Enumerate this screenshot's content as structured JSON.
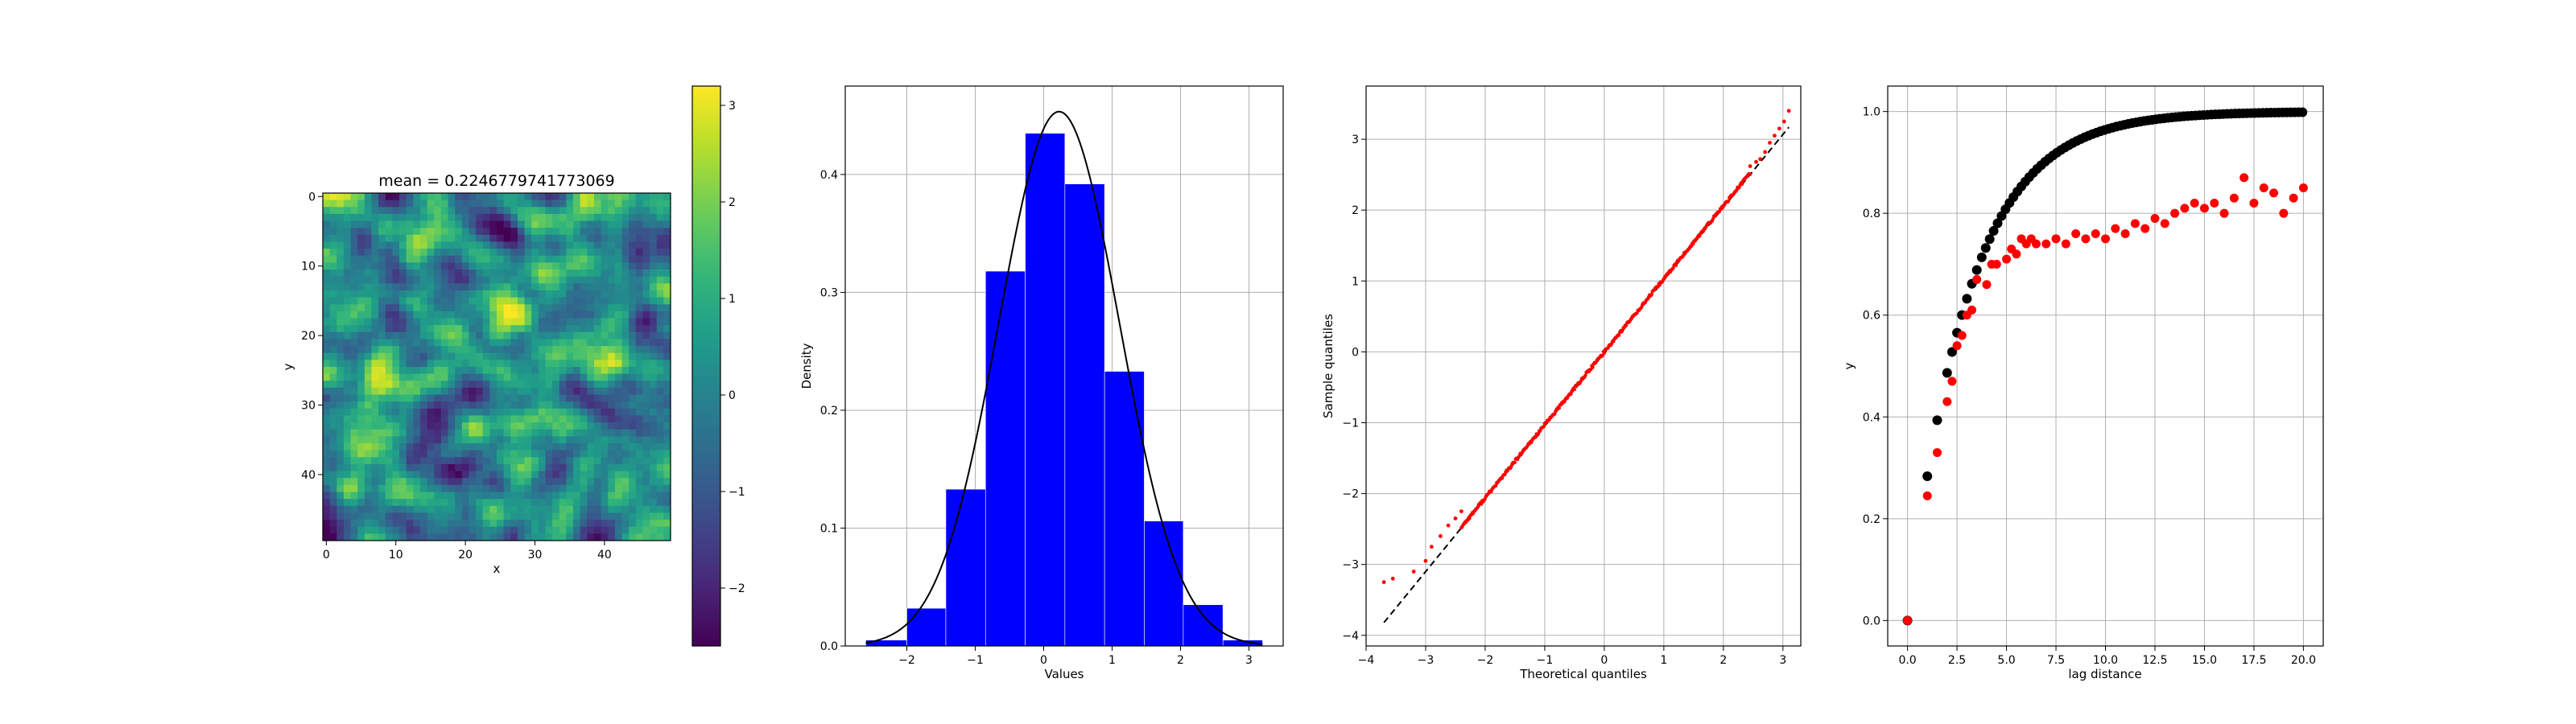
{
  "colors": {
    "hist_bar": "#0000ff",
    "qq_points": "#ff0000",
    "vario_experimental": "#ff0000",
    "vario_model": "#000000",
    "colormap": "viridis"
  },
  "chart_data": [
    {
      "type": "heatmap",
      "title": "mean = 0.2246779741773069",
      "xlabel": "x",
      "ylabel": "y",
      "grid_size": [
        50,
        50
      ],
      "xlim": [
        -0.5,
        49.5
      ],
      "ylim": [
        49.5,
        -0.5
      ],
      "x_ticks": [
        "0",
        "10",
        "20",
        "30",
        "40"
      ],
      "y_ticks": [
        "0",
        "10",
        "20",
        "30",
        "40"
      ],
      "colorbar": {
        "range": [
          -2.6,
          3.2
        ],
        "ticks": [
          "−2",
          "−1",
          "0",
          "1",
          "2",
          "3"
        ],
        "colormap": "viridis"
      },
      "mean": 0.2246779741773069,
      "std": 1.0
    },
    {
      "type": "bar",
      "subtype": "histogram",
      "xlabel": "Values",
      "ylabel": "Density",
      "bin_edges": [
        -2.6,
        -2.0,
        -1.43,
        -0.85,
        -0.27,
        0.31,
        0.89,
        1.47,
        2.04,
        2.62,
        3.2
      ],
      "values": [
        0.005,
        0.032,
        0.133,
        0.318,
        0.435,
        0.392,
        0.233,
        0.106,
        0.035,
        0.005
      ],
      "xlim": [
        -2.9,
        3.5
      ],
      "ylim": [
        0,
        0.475
      ],
      "x_ticks": [
        "−2",
        "−1",
        "0",
        "1",
        "2",
        "3"
      ],
      "y_ticks": [
        "0.0",
        "0.1",
        "0.2",
        "0.3",
        "0.4"
      ],
      "grid": true,
      "overlay_curve": {
        "type": "normal_pdf",
        "mean": 0.2246779741773069,
        "std": 0.88,
        "color": "#000000"
      }
    },
    {
      "type": "scatter",
      "subtype": "qq_plot",
      "xlabel": "Theoretical quantiles",
      "ylabel": "Sample quantiles",
      "xlim": [
        -4.0,
        3.3
      ],
      "ylim": [
        -4.15,
        3.75
      ],
      "x_ticks": [
        "−4",
        "−3",
        "−2",
        "−1",
        "0",
        "1",
        "2",
        "3"
      ],
      "y_ticks": [
        "−4",
        "−3",
        "−2",
        "−1",
        "0",
        "1",
        "2",
        "3"
      ],
      "grid": true,
      "n_points": 2500,
      "reference_line": {
        "x": [
          -3.7,
          3.1
        ],
        "y": [
          -3.82,
          3.17
        ]
      },
      "lower_tail": {
        "x": [
          -3.7,
          -3.55,
          -3.2,
          -3.0,
          -2.9,
          -2.75,
          -2.62,
          -2.5,
          -2.4
        ],
        "y": [
          -3.25,
          -3.2,
          -3.1,
          -2.95,
          -2.75,
          -2.6,
          -2.45,
          -2.35,
          -2.25
        ]
      },
      "upper_tail": {
        "x": [
          2.45,
          2.55,
          2.62,
          2.7,
          2.78,
          2.86,
          2.94,
          3.02,
          3.1
        ],
        "y": [
          2.62,
          2.68,
          2.72,
          2.82,
          2.95,
          3.05,
          3.15,
          3.25,
          3.4
        ]
      },
      "body_slope": 1.03,
      "body_intercept": 0.0,
      "grid_on": true
    },
    {
      "type": "scatter",
      "subtype": "variogram",
      "xlabel": "lag distance",
      "ylabel": "y",
      "xlim": [
        -1.0,
        21.0
      ],
      "ylim": [
        -0.05,
        1.05
      ],
      "x_ticks": [
        "0.0",
        "2.5",
        "5.0",
        "7.5",
        "10.0",
        "12.5",
        "15.0",
        "17.5",
        "20.0"
      ],
      "y_ticks": [
        "0.0",
        "0.2",
        "0.4",
        "0.6",
        "0.8",
        "1.0"
      ],
      "grid": true,
      "series": [
        {
          "name": "",
          "color": "#ff0000",
          "x": [
            0.0,
            1.0,
            1.5,
            2.0,
            2.25,
            2.5,
            2.75,
            3.0,
            3.25,
            3.5,
            4.0,
            4.25,
            4.5,
            5.0,
            5.25,
            5.5,
            5.75,
            6.0,
            6.25,
            6.5,
            7.0,
            7.5,
            8.0,
            8.5,
            9.0,
            9.5,
            10.0,
            10.5,
            11.0,
            11.5,
            12.0,
            12.5,
            13.0,
            13.5,
            14.0,
            14.5,
            15.0,
            15.5,
            16.0,
            16.5,
            17.0,
            17.5,
            18.0,
            18.5,
            19.0,
            19.5,
            20.0
          ],
          "y": [
            0.0,
            0.245,
            0.33,
            0.43,
            0.47,
            0.54,
            0.56,
            0.6,
            0.61,
            0.67,
            0.66,
            0.7,
            0.7,
            0.71,
            0.73,
            0.72,
            0.75,
            0.74,
            0.75,
            0.74,
            0.74,
            0.75,
            0.74,
            0.76,
            0.75,
            0.76,
            0.75,
            0.77,
            0.76,
            0.78,
            0.77,
            0.79,
            0.78,
            0.8,
            0.81,
            0.82,
            0.81,
            0.82,
            0.8,
            0.83,
            0.87,
            0.82,
            0.85,
            0.84,
            0.8,
            0.83,
            0.85
          ]
        },
        {
          "name": "",
          "color": "#000000",
          "model": {
            "type": "exponential",
            "sill": 1.0,
            "range_param": 3.0
          },
          "x_step": 0.2,
          "x_max": 20.0,
          "point_x": [
            0.0,
            1.0,
            1.5,
            2.0,
            2.25,
            2.5,
            2.75,
            3.0,
            3.25,
            3.5
          ]
        }
      ]
    }
  ]
}
